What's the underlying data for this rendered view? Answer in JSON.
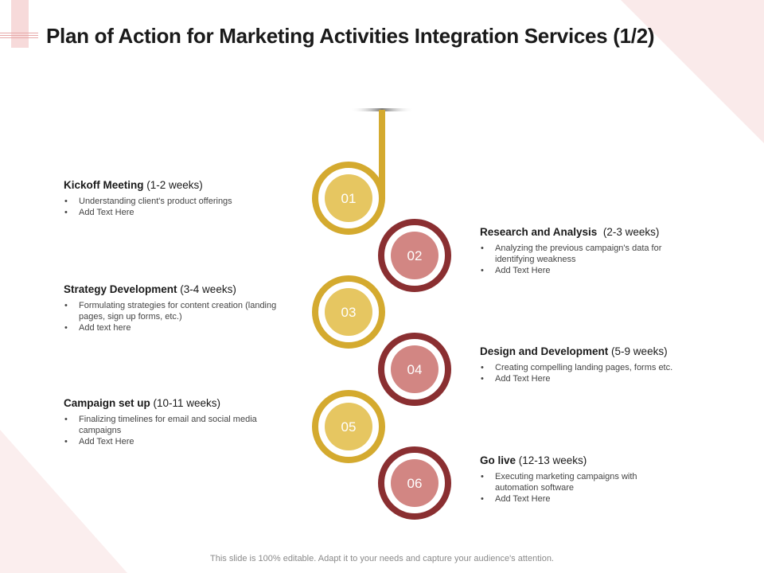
{
  "title": "Plan of Action for Marketing Activities Integration Services (1/2)",
  "colors": {
    "gold": "#d4aa2f",
    "gold_fill": "#e6c661",
    "maroon": "#8a2f31",
    "rose_fill": "#d28683",
    "decor_pink": "#faeaea"
  },
  "steps": [
    {
      "number": "01",
      "heading_bold": "Kickoff Meeting",
      "heading_rest": " (1-2 weeks)",
      "bullets": [
        "Understanding client's product offerings",
        "Add Text Here"
      ]
    },
    {
      "number": "02",
      "heading_bold": "Research and Analysis",
      "heading_rest": "  (2-3 weeks)",
      "bullets": [
        "Analyzing the previous campaign's data for identifying weakness",
        "Add Text Here"
      ]
    },
    {
      "number": "03",
      "heading_bold": "Strategy Development",
      "heading_rest": " (3-4 weeks)",
      "bullets": [
        "Formulating strategies for content creation (landing pages, sign up forms, etc.)",
        "Add text here"
      ]
    },
    {
      "number": "04",
      "heading_bold": "Design and Development",
      "heading_rest": " (5-9 weeks)",
      "bullets": [
        "Creating compelling landing pages, forms etc.",
        "Add Text Here"
      ]
    },
    {
      "number": "05",
      "heading_bold": "Campaign set up",
      "heading_rest": " (10-11 weeks)",
      "bullets": [
        "Finalizing timelines for email and social media campaigns",
        "Add Text Here"
      ]
    },
    {
      "number": "06",
      "heading_bold": "Go live",
      "heading_rest": " (12-13 weeks)",
      "bullets": [
        "Executing marketing campaigns with automation software",
        "Add Text Here"
      ]
    }
  ],
  "footer": "This slide is 100% editable. Adapt it to your needs and capture your audience's attention."
}
